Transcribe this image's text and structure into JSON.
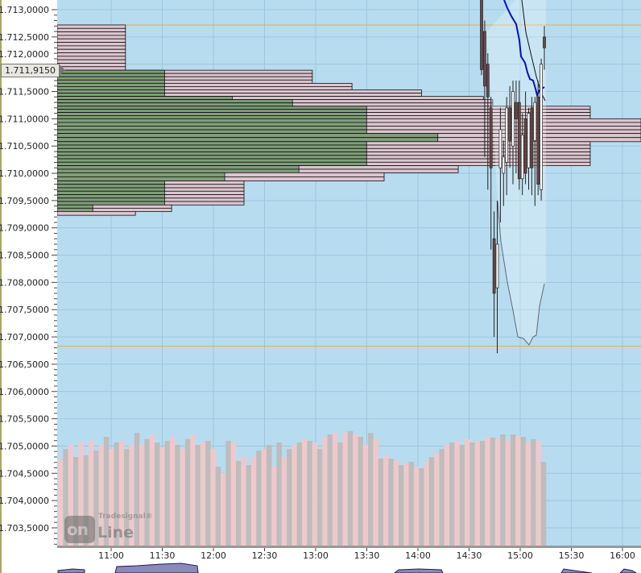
{
  "colors": {
    "background": "#b7dcef",
    "grid": "#9cc7de",
    "profile_buy": "#7f9f78",
    "profile_sell": "#dcc5cf",
    "candle_down": "#6b4848",
    "candle_up": "#ffffff",
    "ma_blue": "#0010c8",
    "level_line": "#d9b24a",
    "volume_pink": "#f0c8cc",
    "volume_gray": "#bdbdbd"
  },
  "price_axis": {
    "labels": [
      "1.713,0000",
      "1.712,5000",
      "1.712,0000",
      "1.711,5000",
      "1.711,0000",
      "1.710,5000",
      "1.710,0000",
      "1.709,5000",
      "1.709,0000",
      "1.708,5000",
      "1.708,0000",
      "1.707,5000",
      "1.707,0000",
      "1.706,5000",
      "1.706,0000",
      "1.705,5000",
      "1.705,0000",
      "1.704,5000",
      "1.704,0000",
      "1.703,5000"
    ],
    "range": [
      1.7031,
      1.7132
    ]
  },
  "current_price": "1.711,9150",
  "time_axis": {
    "labels": [
      "11:00",
      "11:30",
      "12:00",
      "12:30",
      "13:00",
      "13:30",
      "14:00",
      "14:30",
      "15:00",
      "15:30",
      "16:00"
    ]
  },
  "levels": [
    1.71272,
    1.70683
  ],
  "volume_profile": [
    {
      "from": 1.71189,
      "to": 1.71272,
      "buy": 0,
      "sell": 0.117
    },
    {
      "from": 1.71165,
      "to": 1.71189,
      "buy": 0.184,
      "sell": 0.437
    },
    {
      "from": 1.71153,
      "to": 1.71165,
      "buy": 0.184,
      "sell": 0.505
    },
    {
      "from": 1.71141,
      "to": 1.71153,
      "buy": 0.184,
      "sell": 0.624
    },
    {
      "from": 1.71135,
      "to": 1.71141,
      "buy": 0.3,
      "sell": 0.73
    },
    {
      "from": 1.71123,
      "to": 1.71135,
      "buy": 0.403,
      "sell": 0.746
    },
    {
      "from": 1.711,
      "to": 1.71123,
      "buy": 0.53,
      "sell": 0.913
    },
    {
      "from": 1.71073,
      "to": 1.711,
      "buy": 0.53,
      "sell": 1.0
    },
    {
      "from": 1.71058,
      "to": 1.71073,
      "buy": 0.652,
      "sell": 1.0
    },
    {
      "from": 1.71014,
      "to": 1.71058,
      "buy": 0.53,
      "sell": 0.913
    },
    {
      "from": 1.71001,
      "to": 1.71014,
      "buy": 0.414,
      "sell": 0.687
    },
    {
      "from": 1.70986,
      "to": 1.71001,
      "buy": 0.287,
      "sell": 0.56
    },
    {
      "from": 1.70942,
      "to": 1.70986,
      "buy": 0.184,
      "sell": 0.32
    },
    {
      "from": 1.7093,
      "to": 1.70942,
      "buy": 0.061,
      "sell": 0.196
    },
    {
      "from": 1.70923,
      "to": 1.7093,
      "buy": 0,
      "sell": 0.134
    }
  ],
  "candles": [
    [
      1.7132,
      1.7132,
      1.7118,
      1.7119
    ],
    [
      1.7126,
      1.7128,
      1.7103,
      1.7116
    ],
    [
      1.712,
      1.7122,
      1.7097,
      1.7114
    ],
    [
      1.7112,
      1.7114,
      1.7086,
      1.7101
    ],
    [
      1.7088,
      1.7093,
      1.707,
      1.7078
    ],
    [
      1.7079,
      1.7095,
      1.7067,
      1.7087
    ],
    [
      1.7101,
      1.7112,
      1.7091,
      1.7108
    ],
    [
      1.71,
      1.7106,
      1.7094,
      1.7103
    ],
    [
      1.7102,
      1.7114,
      1.7096,
      1.7112
    ],
    [
      1.7112,
      1.7116,
      1.7101,
      1.7106
    ],
    [
      1.7105,
      1.7117,
      1.7098,
      1.7115
    ],
    [
      1.7113,
      1.7117,
      1.71,
      1.711
    ],
    [
      1.7113,
      1.7117,
      1.7097,
      1.7099
    ],
    [
      1.7099,
      1.7111,
      1.7096,
      1.7107
    ],
    [
      1.711,
      1.7115,
      1.7098,
      1.71
    ],
    [
      1.7101,
      1.7112,
      1.7097,
      1.7111
    ],
    [
      1.7112,
      1.7114,
      1.7096,
      1.7101
    ],
    [
      1.7106,
      1.7114,
      1.7094,
      1.7113
    ],
    [
      1.7114,
      1.7117,
      1.7096,
      1.7098
    ],
    [
      1.7097,
      1.7121,
      1.7095,
      1.712
    ],
    [
      1.7125,
      1.7127,
      1.7119,
      1.7123
    ]
  ],
  "volume": [
    107,
    120,
    125,
    110,
    128,
    112,
    130,
    118,
    125,
    135,
    120,
    128,
    130,
    120,
    125,
    140,
    125,
    132,
    138,
    128,
    122,
    130,
    135,
    125,
    120,
    132,
    138,
    125,
    128,
    130,
    120,
    98,
    90,
    130,
    128,
    105,
    110,
    100,
    110,
    118,
    120,
    125,
    98,
    128,
    110,
    120,
    125,
    128,
    132,
    130,
    128,
    120,
    135,
    138,
    140,
    128,
    140,
    142,
    138,
    135,
    125,
    140,
    132,
    108,
    112,
    108,
    106,
    100,
    102,
    104,
    98,
    96,
    104,
    110,
    115,
    120,
    125,
    128,
    130,
    125,
    132,
    128,
    130,
    130,
    135,
    134,
    132,
    138,
    130,
    138,
    136,
    135,
    128,
    132,
    130,
    104
  ]
}
